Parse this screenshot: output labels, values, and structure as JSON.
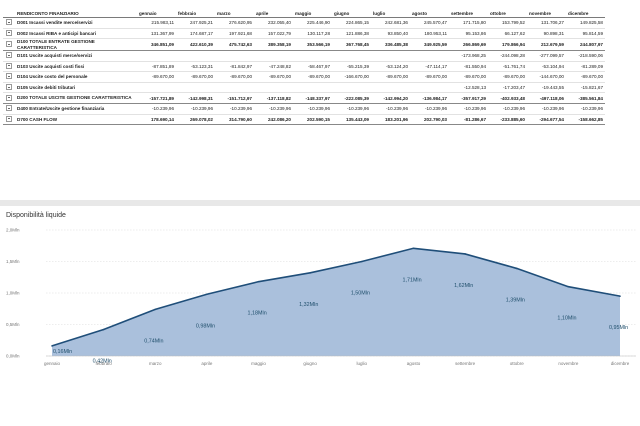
{
  "table": {
    "header_label": "RENDICONTO FINANZIARIO",
    "months": [
      "gennaio",
      "febbraio",
      "marzo",
      "aprile",
      "maggio",
      "giugno",
      "luglio",
      "agosto",
      "settembre",
      "ottobre",
      "novembre",
      "dicembre"
    ],
    "rows": [
      {
        "label": "D001 Incassi vendite merce/servizi",
        "values": [
          "215.983,11",
          "247.925,21",
          "276.620,95",
          "232.055,40",
          "225.446,90",
          "224.865,15",
          "242.681,36",
          "245.570,47",
          "171.715,80",
          "153.799,52",
          "131.706,27",
          "149.825,58"
        ]
      },
      {
        "label": "D002 Incassi RIBA e anticipi bancari",
        "values": [
          "131.367,99",
          "174.687,17",
          "197.921,68",
          "157.022,79",
          "130.117,28",
          "121.886,38",
          "93.850,40",
          "180.953,11",
          "95.153,86",
          "66.127,62",
          "90.898,31",
          "95.814,59"
        ]
      },
      {
        "label": "D100 TOTALE ENTRATE GESTIONE CARATTERISTICA",
        "values": [
          "346.851,09",
          "422.610,39",
          "475.742,63",
          "389.358,19",
          "353.566,19",
          "367.768,45",
          "336.485,38",
          "349.925,59",
          "266.869,69",
          "179.866,94",
          "212.679,59",
          "244.807,97"
        ],
        "total": true
      },
      {
        "label": "D101 Uscite acquisti merce/servizi",
        "values": [
          "",
          "",
          "",
          "",
          "",
          "",
          "",
          "",
          "-173.968,25",
          "-244.098,28",
          "-277.099,57",
          "-218.590,06"
        ]
      },
      {
        "label": "D103 Uscite acquisti costi fissi",
        "values": [
          "-87.851,89",
          "-53.123,31",
          "-81.842,97",
          "-47.248,82",
          "-58.467,97",
          "-55.215,39",
          "-53.124,20",
          "-47.114,17",
          "-81.550,94",
          "-51.761,74",
          "-53.104,94",
          "-81.289,09"
        ]
      },
      {
        "label": "D104 Uscite costo del personale",
        "values": [
          "-89.670,00",
          "-89.670,00",
          "-89.670,00",
          "-89.670,00",
          "-89.670,00",
          "-166.670,00",
          "-89.670,00",
          "-89.670,00",
          "-89.670,00",
          "-89.670,00",
          "-144.670,00",
          "-89.670,00"
        ]
      },
      {
        "label": "D105 Uscite debiti tributari",
        "values": [
          "",
          "",
          "",
          "",
          "",
          "",
          "",
          "",
          "-12.528,13",
          "-17.203,47",
          "-19.443,55",
          "-15.821,67"
        ]
      },
      {
        "label": "D200 TOTALE USCITE GESTIONE CARATTERISTICA",
        "values": [
          "-157.721,89",
          "-142.998,31",
          "-151.712,97",
          "-137.118,82",
          "-148.337,97",
          "-222.085,39",
          "-142.994,20",
          "-136.984,17",
          "-357.917,29",
          "-402.933,48",
          "-497.118,06",
          "-385.561,84"
        ],
        "total": true
      },
      {
        "label": "D400 Entrate/Uscite gestione finanziaria",
        "values": [
          "-10.239,96",
          "-10.239,96",
          "-10.239,96",
          "-10.239,96",
          "-10.239,96",
          "-10.239,96",
          "-10.239,96",
          "-10.239,96",
          "-10.239,96",
          "-10.239,96",
          "-10.239,96",
          "-10.239,96"
        ]
      },
      {
        "label": "D700 CASH FLOW",
        "values": [
          "178.690,14",
          "269.078,02",
          "314.790,60",
          "242.086,20",
          "202.590,15",
          "135.443,09",
          "183.201,96",
          "202.790,03",
          "-81.286,67",
          "-233.885,60",
          "-294.677,54",
          "-158.662,85"
        ],
        "total": true
      }
    ]
  },
  "chart_title": "Disponibilità liquide",
  "chart_data": {
    "type": "area",
    "categories": [
      "gennaio",
      "febbraio",
      "marzo",
      "aprile",
      "maggio",
      "giugno",
      "luglio",
      "agosto",
      "settembre",
      "ottobre",
      "novembre",
      "dicembre"
    ],
    "values": [
      0.16,
      0.42,
      0.74,
      0.98,
      1.18,
      1.32,
      1.5,
      1.71,
      1.62,
      1.39,
      1.1,
      0.95
    ],
    "data_labels": [
      "0,16Mln",
      "0,42Mln",
      "0,74Mln",
      "0,98Mln",
      "1,18Mln",
      "1,32Mln",
      "1,50Mln",
      "1,71Mln",
      "1,62Mln",
      "1,39Mln",
      "1,10Mln",
      "0,95Mln"
    ],
    "y_ticks": [
      "0,0Mln",
      "0,5Mln",
      "1,0Mln",
      "1,5Mln",
      "2,0Mln"
    ],
    "y_tick_values": [
      0,
      0.5,
      1.0,
      1.5,
      2.0
    ],
    "ylim": [
      0,
      2.0
    ],
    "fill_color": "#aac0dc",
    "line_color": "#1f4e79",
    "label_color": "#1f4e6b",
    "grid": true
  }
}
